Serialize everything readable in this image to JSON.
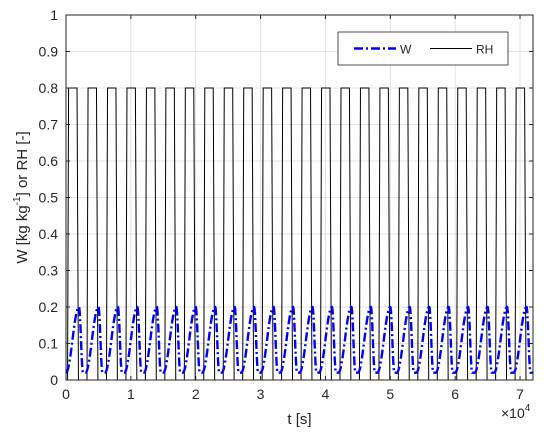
{
  "chart_data": {
    "type": "line",
    "title": "",
    "xlabel": "t [s]",
    "ylabel_parts": {
      "before": "W [kg kg",
      "sup": "-1",
      "after": "] or RH [-]"
    },
    "xlim": [
      0,
      72000
    ],
    "ylim": [
      0,
      1
    ],
    "x_ticks": [
      0,
      10000,
      20000,
      30000,
      40000,
      50000,
      60000,
      70000
    ],
    "x_tick_labels": [
      "0",
      "1",
      "2",
      "3",
      "4",
      "5",
      "6",
      "7"
    ],
    "x_exponent": {
      "base": "×10",
      "power": "4"
    },
    "y_ticks": [
      0,
      0.1,
      0.2,
      0.3,
      0.4,
      0.5,
      0.6,
      0.7,
      0.8,
      0.9,
      1
    ],
    "y_tick_labels": [
      "0",
      "0.1",
      "0.2",
      "0.3",
      "0.4",
      "0.5",
      "0.6",
      "0.7",
      "0.8",
      "0.9",
      "1"
    ],
    "grid": true,
    "legend_position": "top-right",
    "period": 3000,
    "cycles": 24,
    "series": [
      {
        "name": "W",
        "style": "dash-dot",
        "color": "#0000ff",
        "min": 0.02,
        "max": 0.2,
        "peak_time_in_cycle": 2000
      },
      {
        "name": "RH",
        "style": "solid",
        "color": "#000000",
        "low": 0,
        "high": 0.8,
        "high_from_in_cycle": 400,
        "high_to_in_cycle": 1700
      }
    ]
  }
}
